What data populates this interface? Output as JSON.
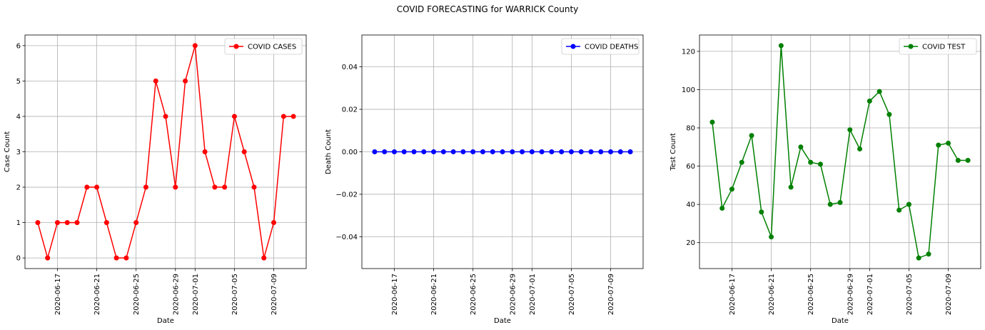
{
  "figure": {
    "title": "COVID FORECASTING for WARRICK County"
  },
  "chart_data": [
    {
      "type": "line",
      "x": [
        "2020-06-15",
        "2020-06-16",
        "2020-06-17",
        "2020-06-18",
        "2020-06-19",
        "2020-06-20",
        "2020-06-21",
        "2020-06-22",
        "2020-06-23",
        "2020-06-24",
        "2020-06-25",
        "2020-06-26",
        "2020-06-27",
        "2020-06-28",
        "2020-06-29",
        "2020-06-30",
        "2020-07-01",
        "2020-07-02",
        "2020-07-03",
        "2020-07-04",
        "2020-07-05",
        "2020-07-06",
        "2020-07-07",
        "2020-07-08",
        "2020-07-09",
        "2020-07-10",
        "2020-07-11"
      ],
      "series": [
        {
          "name": "COVID CASES",
          "color": "#ff0000",
          "values": [
            1,
            0,
            1,
            1,
            1,
            2,
            2,
            1,
            0,
            0,
            1,
            2,
            5,
            4,
            2,
            5,
            6,
            3,
            2,
            2,
            4,
            3,
            2,
            0,
            1,
            4,
            4
          ]
        }
      ],
      "xlabel": "Date",
      "ylabel": "Case Count",
      "xticks": [
        "2020-06-17",
        "2020-06-21",
        "2020-06-25",
        "2020-06-29",
        "2020-07-01",
        "2020-07-05",
        "2020-07-09"
      ],
      "yticks": [
        0,
        1,
        2,
        3,
        4,
        5,
        6
      ],
      "ylim": [
        -0.3,
        6.3
      ],
      "grid": true,
      "legend": "upper right"
    },
    {
      "type": "line",
      "x": [
        "2020-06-15",
        "2020-06-16",
        "2020-06-17",
        "2020-06-18",
        "2020-06-19",
        "2020-06-20",
        "2020-06-21",
        "2020-06-22",
        "2020-06-23",
        "2020-06-24",
        "2020-06-25",
        "2020-06-26",
        "2020-06-27",
        "2020-06-28",
        "2020-06-29",
        "2020-06-30",
        "2020-07-01",
        "2020-07-02",
        "2020-07-03",
        "2020-07-04",
        "2020-07-05",
        "2020-07-06",
        "2020-07-07",
        "2020-07-08",
        "2020-07-09",
        "2020-07-10",
        "2020-07-11"
      ],
      "series": [
        {
          "name": "COVID DEATHS",
          "color": "#0000ff",
          "values": [
            0,
            0,
            0,
            0,
            0,
            0,
            0,
            0,
            0,
            0,
            0,
            0,
            0,
            0,
            0,
            0,
            0,
            0,
            0,
            0,
            0,
            0,
            0,
            0,
            0,
            0,
            0
          ]
        }
      ],
      "xlabel": "Date",
      "ylabel": "Death Count",
      "xticks": [
        "2020-06-17",
        "2020-06-21",
        "2020-06-25",
        "2020-06-29",
        "2020-07-01",
        "2020-07-05",
        "2020-07-09"
      ],
      "yticks": [
        -0.04,
        -0.02,
        0.0,
        0.02,
        0.04
      ],
      "ytick_labels": [
        "−0.04",
        "−0.02",
        "0.00",
        "0.02",
        "0.04"
      ],
      "ylim": [
        -0.055,
        0.055
      ],
      "grid": true,
      "legend": "upper right"
    },
    {
      "type": "line",
      "x": [
        "2020-06-15",
        "2020-06-16",
        "2020-06-17",
        "2020-06-18",
        "2020-06-19",
        "2020-06-20",
        "2020-06-21",
        "2020-06-22",
        "2020-06-23",
        "2020-06-24",
        "2020-06-25",
        "2020-06-26",
        "2020-06-27",
        "2020-06-28",
        "2020-06-29",
        "2020-06-30",
        "2020-07-01",
        "2020-07-02",
        "2020-07-03",
        "2020-07-04",
        "2020-07-05",
        "2020-07-06",
        "2020-07-07",
        "2020-07-08",
        "2020-07-09",
        "2020-07-10",
        "2020-07-11"
      ],
      "series": [
        {
          "name": "COVID TEST",
          "color": "#008000",
          "values": [
            83,
            38,
            48,
            62,
            76,
            36,
            23,
            123,
            49,
            70,
            62,
            61,
            40,
            41,
            79,
            69,
            94,
            99,
            87,
            37,
            40,
            12,
            14,
            71,
            72,
            63,
            63
          ]
        }
      ],
      "xlabel": "Date",
      "ylabel": "Test Count",
      "xticks": [
        "2020-06-17",
        "2020-06-21",
        "2020-06-25",
        "2020-06-29",
        "2020-07-01",
        "2020-07-05",
        "2020-07-09"
      ],
      "yticks": [
        20,
        40,
        60,
        80,
        100,
        120
      ],
      "ylim": [
        6.45,
        128.55
      ],
      "grid": true,
      "legend": "upper right"
    }
  ]
}
